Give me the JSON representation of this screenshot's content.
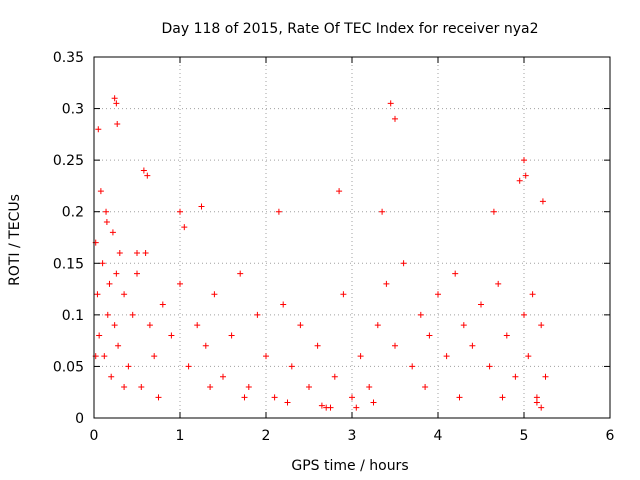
{
  "chart_data": {
    "type": "scatter",
    "title": "Day 118 of 2015, Rate Of TEC Index for receiver nya2",
    "xlabel": "GPS time / hours",
    "ylabel": "ROTI / TECUs",
    "xlim": [
      0,
      6
    ],
    "ylim": [
      0,
      0.35
    ],
    "x_ticks": [
      "0",
      "1",
      "2",
      "3",
      "4",
      "5",
      "6"
    ],
    "y_ticks": [
      "0",
      "0.05",
      "0.1",
      "0.15",
      "0.2",
      "0.25",
      "0.3",
      "0.35"
    ],
    "grid": true,
    "marker": "+",
    "colors": {
      "series": "#ff0000",
      "axes": "#000000",
      "grid": "#a0a0a0",
      "background": "#ffffff"
    },
    "series": [
      {
        "name": "nya2",
        "x": [
          0.02,
          0.04,
          0.06,
          0.08,
          0.1,
          0.12,
          0.14,
          0.16,
          0.18,
          0.2,
          0.22,
          0.24,
          0.26,
          0.28,
          0.3,
          0.35,
          0.4,
          0.45,
          0.5,
          0.55,
          0.6,
          0.65,
          0.7,
          0.8,
          0.9,
          1.0,
          1.1,
          1.2,
          1.3,
          1.4,
          1.5,
          1.6,
          1.7,
          1.8,
          1.9,
          2.0,
          2.1,
          2.2,
          2.3,
          2.4,
          2.5,
          2.6,
          2.7,
          2.8,
          2.9,
          3.0,
          3.1,
          3.2,
          3.3,
          3.4,
          3.5,
          3.6,
          3.7,
          3.8,
          3.9,
          4.0,
          4.1,
          4.2,
          4.3,
          4.4,
          4.5,
          4.6,
          4.7,
          4.8,
          4.9,
          5.0,
          5.05,
          5.1,
          5.15,
          5.2,
          5.25,
          0.24,
          0.26,
          0.27,
          3.45,
          3.5,
          0.58,
          0.62,
          4.95,
          5.0,
          5.02,
          0.05,
          0.15,
          0.5,
          1.0,
          1.05,
          1.25,
          2.15,
          2.85,
          3.35,
          4.65,
          5.22,
          0.02,
          0.35,
          0.75,
          1.35,
          1.75,
          2.25,
          2.65,
          2.75,
          3.05,
          3.25,
          3.85,
          4.25,
          4.75,
          5.15,
          5.2
        ],
        "y": [
          0.17,
          0.12,
          0.08,
          0.22,
          0.15,
          0.06,
          0.2,
          0.1,
          0.13,
          0.04,
          0.18,
          0.09,
          0.14,
          0.07,
          0.16,
          0.12,
          0.05,
          0.1,
          0.14,
          0.03,
          0.16,
          0.09,
          0.06,
          0.11,
          0.08,
          0.13,
          0.05,
          0.09,
          0.07,
          0.12,
          0.04,
          0.08,
          0.14,
          0.03,
          0.1,
          0.06,
          0.02,
          0.11,
          0.05,
          0.09,
          0.03,
          0.07,
          0.01,
          0.04,
          0.12,
          0.02,
          0.06,
          0.03,
          0.09,
          0.13,
          0.07,
          0.15,
          0.05,
          0.1,
          0.08,
          0.12,
          0.06,
          0.14,
          0.09,
          0.07,
          0.11,
          0.05,
          0.13,
          0.08,
          0.04,
          0.1,
          0.06,
          0.12,
          0.02,
          0.09,
          0.04,
          0.31,
          0.305,
          0.285,
          0.305,
          0.29,
          0.24,
          0.235,
          0.23,
          0.25,
          0.235,
          0.28,
          0.19,
          0.16,
          0.2,
          0.185,
          0.205,
          0.2,
          0.22,
          0.2,
          0.2,
          0.21,
          0.06,
          0.03,
          0.02,
          0.03,
          0.02,
          0.015,
          0.012,
          0.01,
          0.01,
          0.015,
          0.03,
          0.02,
          0.02,
          0.015,
          0.01
        ]
      }
    ]
  }
}
